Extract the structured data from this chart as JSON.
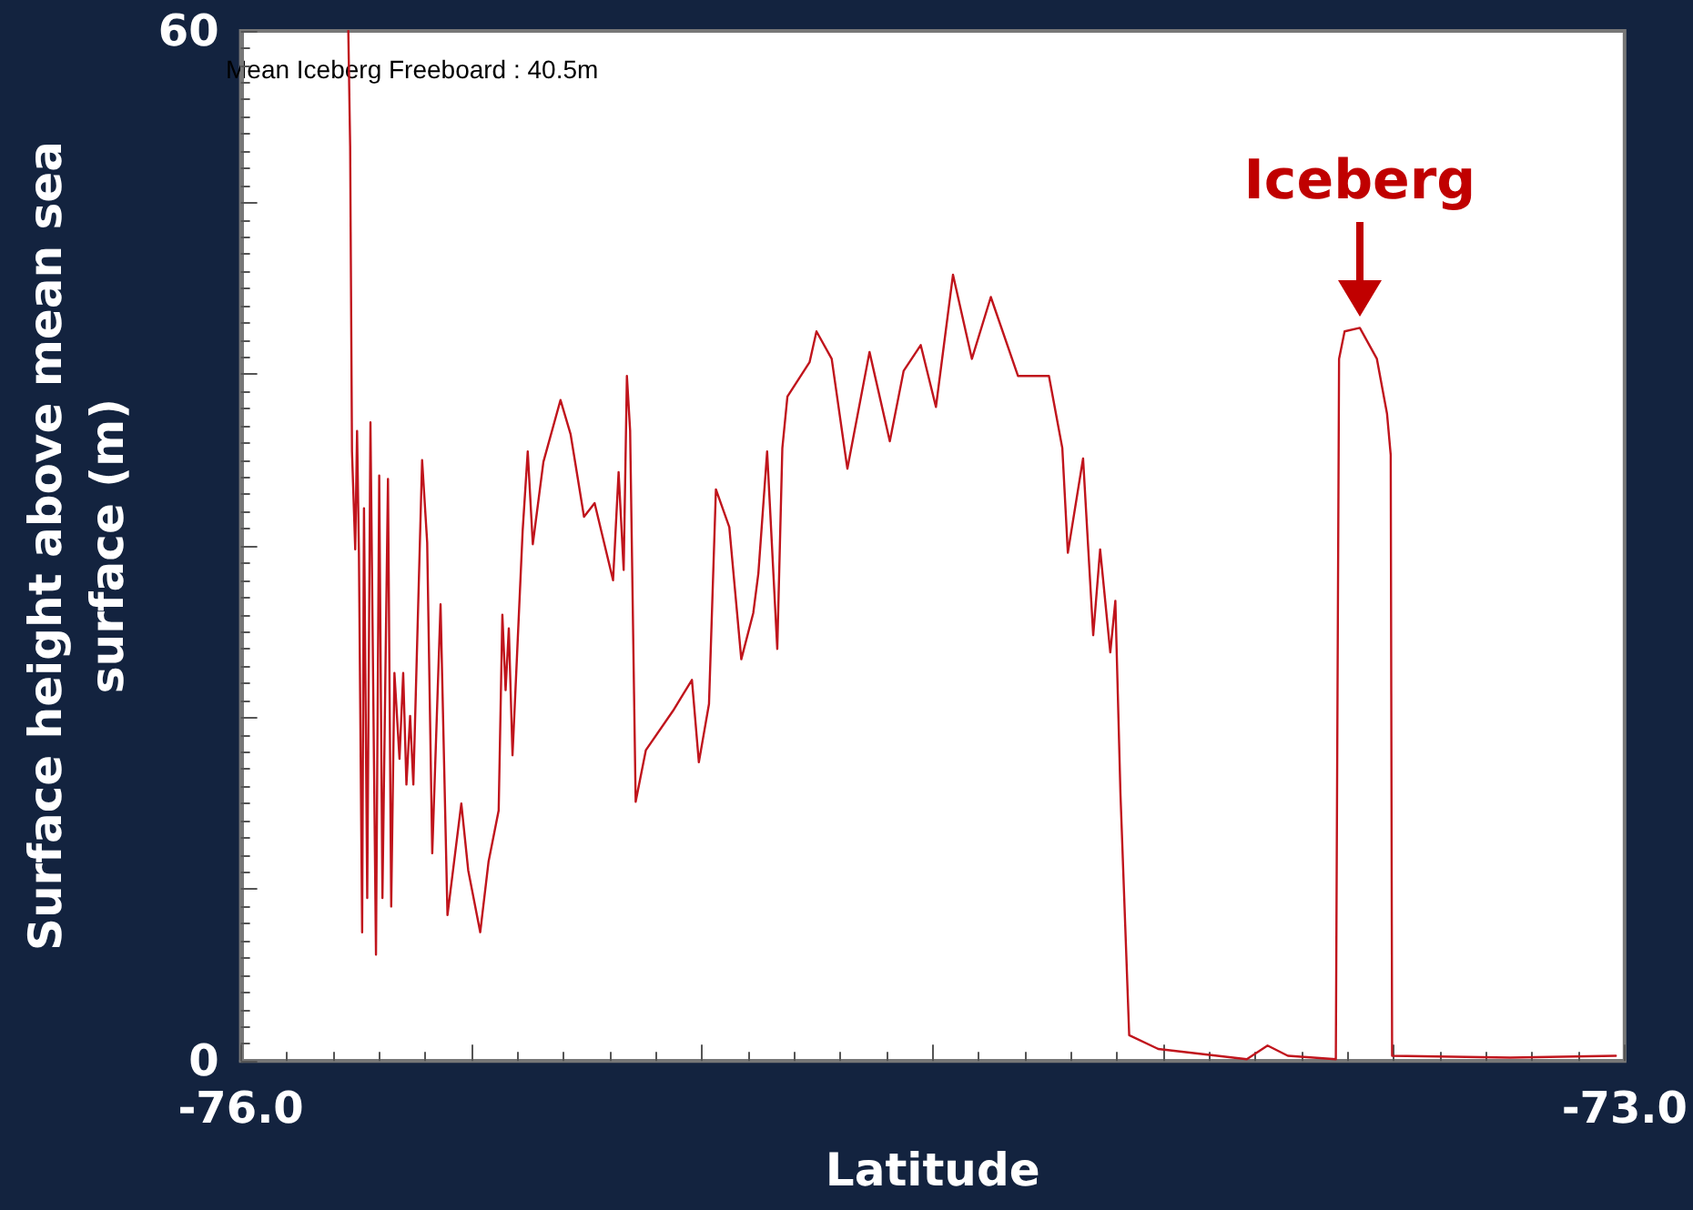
{
  "chart_data": {
    "type": "line",
    "xlabel": "Latitude",
    "ylabel": "Surface height above mean sea surface (m)",
    "xlim": [
      -76,
      -73
    ],
    "ylim": [
      0,
      60
    ],
    "xticks": [
      {
        "value": -76,
        "label": "-76.0"
      },
      {
        "value": -75.5,
        "label": null
      },
      {
        "value": -75,
        "label": null
      },
      {
        "value": -74.5,
        "label": null
      },
      {
        "value": -74,
        "label": null
      },
      {
        "value": -73.5,
        "label": null
      },
      {
        "value": -73,
        "label": "-73.0"
      }
    ],
    "yticks": [
      0,
      {
        "value": 10,
        "label": null
      },
      {
        "value": 20,
        "label": null
      },
      {
        "value": 30,
        "label": null
      },
      {
        "value": 40,
        "label": null
      },
      {
        "value": 50,
        "label": null
      },
      60
    ],
    "grid": false,
    "marker": "none",
    "line_style": "solid",
    "annotations": [
      "Mean Iceberg Freeboard : 40.5m",
      {
        "text": "Iceberg",
        "x": -73.574,
        "y": 42.7
      }
    ],
    "series": [
      {
        "color": "#c0141c",
        "x": [
          -75.767,
          -75.763,
          -75.759,
          -75.752,
          -75.748,
          -75.744,
          -75.737,
          -75.733,
          -75.726,
          -75.719,
          -75.707,
          -75.7,
          -75.693,
          -75.681,
          -75.674,
          -75.667,
          -75.656,
          -75.648,
          -75.641,
          -75.633,
          -75.626,
          -75.607,
          -75.596,
          -75.585,
          -75.567,
          -75.552,
          -75.522,
          -75.507,
          -75.481,
          -75.463,
          -75.441,
          -75.433,
          -75.426,
          -75.419,
          -75.411,
          -75.389,
          -75.378,
          -75.367,
          -75.344,
          -75.307,
          -75.285,
          -75.256,
          -75.233,
          -75.193,
          -75.181,
          -75.17,
          -75.163,
          -75.156,
          -75.144,
          -75.122,
          -75.063,
          -75.022,
          -75.007,
          -74.985,
          -74.97,
          -74.941,
          -74.915,
          -74.889,
          -74.878,
          -74.859,
          -74.837,
          -74.826,
          -74.815,
          -74.767,
          -74.752,
          -74.719,
          -74.685,
          -74.637,
          -74.593,
          -74.563,
          -74.526,
          -74.493,
          -74.456,
          -74.415,
          -74.374,
          -74.315,
          -74.248,
          -74.219,
          -74.207,
          -74.174,
          -74.152,
          -74.137,
          -74.115,
          -74.104,
          -74.093,
          -74.074,
          -74.011,
          -73.819,
          -73.774,
          -73.73,
          -73.626,
          -73.619,
          -73.607,
          -73.574,
          -73.537,
          -73.515,
          -73.507,
          -73.504,
          -73.248,
          -73.019
        ],
        "values": [
          60,
          53.3,
          35.5,
          29.8,
          36.7,
          29.6,
          7.5,
          32.2,
          9.5,
          37.2,
          6.2,
          34.1,
          9.5,
          33.9,
          9.0,
          22.6,
          17.6,
          22.6,
          16.1,
          20.1,
          16.1,
          35.0,
          30.2,
          12.1,
          26.6,
          8.5,
          15.0,
          11.1,
          7.5,
          11.6,
          14.6,
          26.0,
          21.6,
          25.2,
          17.8,
          30.9,
          35.5,
          30.1,
          34.9,
          38.5,
          36.5,
          31.7,
          32.5,
          28.0,
          34.3,
          28.6,
          39.9,
          36.7,
          15.1,
          18.1,
          20.4,
          22.2,
          17.4,
          20.8,
          33.3,
          31.1,
          23.4,
          26.1,
          28.4,
          35.5,
          24.0,
          35.7,
          38.7,
          40.7,
          42.5,
          40.9,
          34.5,
          41.3,
          36.1,
          40.2,
          41.7,
          38.1,
          45.8,
          40.9,
          44.5,
          39.9,
          39.9,
          35.7,
          29.6,
          35.1,
          24.8,
          29.8,
          23.8,
          26.8,
          15.6,
          1.5,
          0.7,
          0.1,
          0.9,
          0.3,
          0.1,
          40.9,
          42.5,
          42.7,
          40.9,
          37.7,
          35.3,
          0.3,
          0.2,
          0.3
        ]
      }
    ]
  }
}
